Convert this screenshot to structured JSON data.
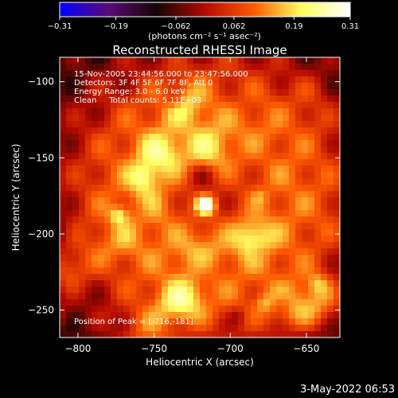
{
  "chart_data": {
    "type": "heatmap",
    "title": "Reconstructed RHESSI Image",
    "xlabel": "Heliocentric X (arcsec)",
    "ylabel": "Heliocentric Y (arcsec)",
    "xlim": [
      -812,
      -628
    ],
    "ylim": [
      -268,
      -84
    ],
    "xticks": [
      -800,
      -750,
      -700,
      -650
    ],
    "yticks": [
      -100,
      -150,
      -200,
      -250
    ],
    "xtick_labels": [
      "−800",
      "−750",
      "−700",
      "−650"
    ],
    "ytick_labels": [
      "−100",
      "−150",
      "−200",
      "−250"
    ],
    "colorbar": {
      "range": [
        -0.31,
        0.31
      ],
      "ticks": [
        -0.31,
        -0.19,
        -0.062,
        0.062,
        0.19,
        0.31
      ],
      "tick_labels": [
        "−0.31",
        "−0.19",
        "−0.062",
        "0.062",
        "0.19",
        "0.31"
      ],
      "unit_text": "(photons cm⁻² s⁻¹ asec⁻²)",
      "colors": [
        "#0000ff",
        "#5a0a78",
        "#140404",
        "#b40a00",
        "#ff5a00",
        "#ffff60",
        "#ffffff"
      ]
    },
    "annotations": [
      "15-Nov-2005 23:44:56.000 to 23:47:56.000",
      "Detectors: 3F 4F 5F 6F 7F 8F, Att 0",
      "Energy Range: 3.0 - 6.0 keV",
      "Clean     Total counts: 5.11E+03"
    ],
    "peak_label": "Position of Peak = [-716,-181]",
    "peak": {
      "x": -716,
      "y": -181,
      "value": 0.31
    },
    "background_level": 0.1
  },
  "footer": {
    "timestamp": "3-May-2022 06:53"
  }
}
